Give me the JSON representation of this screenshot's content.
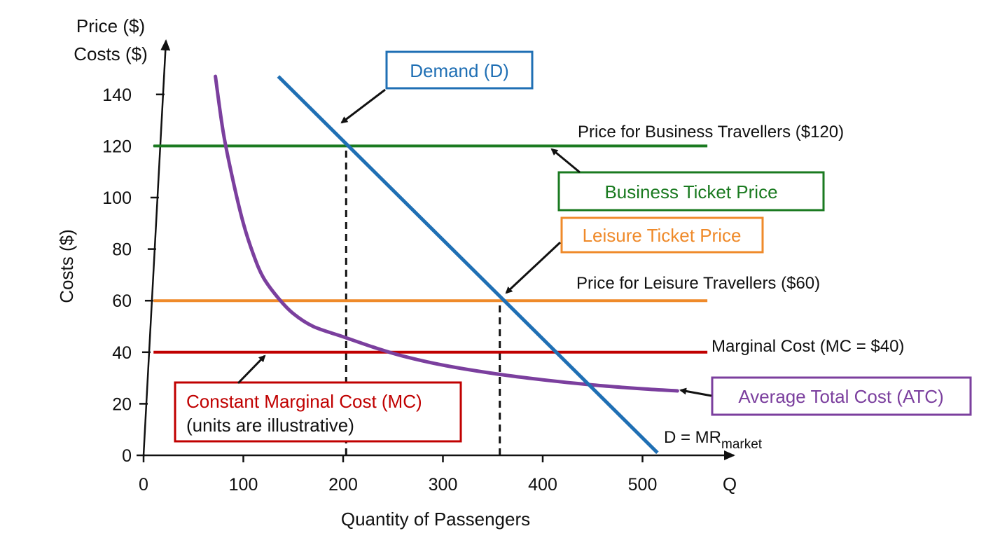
{
  "chart_data": {
    "type": "line",
    "title": "",
    "xlabel": "Quantity of Passengers",
    "x_axis_symbol": "Q",
    "ylabel": "Costs ($)",
    "y_axis_top_label_1": "Price ($)",
    "y_axis_top_label_2": "Costs ($)",
    "xlim": [
      0,
      590
    ],
    "ylim": [
      0,
      155
    ],
    "x_ticks": [
      0,
      100,
      200,
      300,
      400,
      500
    ],
    "x_tick_labels": [
      "0",
      "100",
      "200",
      "300",
      "400",
      "500"
    ],
    "y_ticks": [
      0,
      20,
      40,
      60,
      80,
      100,
      120,
      140
    ],
    "y_tick_labels": [
      "0",
      "20",
      "40",
      "60",
      "80",
      "100",
      "120",
      "140"
    ],
    "grid": false,
    "colors": {
      "demand": "#1f6fb4",
      "business": "#1a7a20",
      "leisure": "#ef8a2a",
      "mc": "#c00000",
      "atc": "#7b3f9e",
      "text": "#111111"
    },
    "series": [
      {
        "key": "demand",
        "x": [
          135,
          515
        ],
        "y": [
          147,
          1
        ]
      },
      {
        "key": "business",
        "x": [
          10,
          565
        ],
        "y": [
          120,
          120
        ]
      },
      {
        "key": "leisure",
        "x": [
          10,
          565
        ],
        "y": [
          60,
          60
        ]
      },
      {
        "key": "mc",
        "x": [
          10,
          565
        ],
        "y": [
          40,
          40
        ]
      },
      {
        "key": "atc",
        "x": [
          72,
          80,
          90,
          100,
          110,
          120,
          135,
          150,
          170,
          200,
          230,
          260,
          300,
          350,
          400,
          450,
          500,
          535
        ],
        "y": [
          147,
          125,
          106,
          90,
          78,
          69,
          61,
          55,
          50,
          46,
          42,
          38.5,
          35,
          31.8,
          29.3,
          27.3,
          25.8,
          25
        ]
      }
    ],
    "reference_lines": [
      {
        "x": 203,
        "y_from": 0,
        "y_to": 120
      },
      {
        "x": 357,
        "y_from": 0,
        "y_to": 60
      }
    ],
    "series_labels": {
      "business": "Price for Business Travellers ($120)",
      "leisure": "Price for Leisure Travellers ($60)",
      "mc": "Marginal Cost (MC = $40)",
      "demand_mr_main": "D = MR",
      "demand_mr_sub": "market"
    },
    "annotations": {
      "demand": "Demand (D)",
      "business": "Business Ticket Price",
      "leisure": "Leisure Ticket Price",
      "mc_line1": "Constant Marginal Cost (MC)",
      "mc_line2": "(units are illustrative)",
      "atc": "Average Total Cost (ATC)"
    }
  }
}
